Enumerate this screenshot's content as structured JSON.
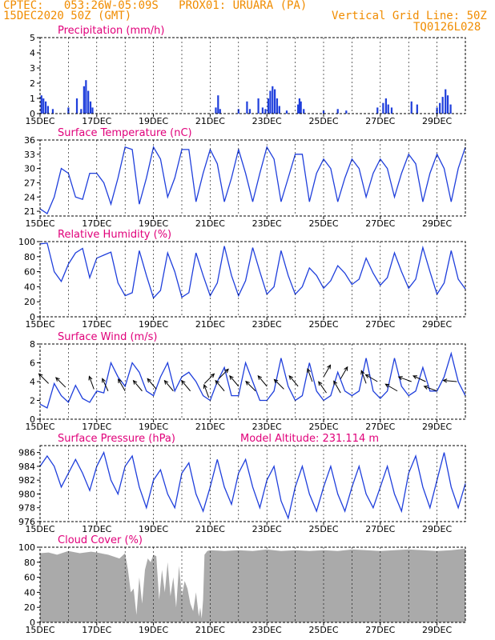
{
  "header": {
    "line1": "CPTEC:   053:26W-05:09S   PROX01: URUARA (PA)",
    "line2_left": "15DEC2020 50Z (GMT)",
    "line2_right": "Vertical Grid Line: 50Z",
    "line3_right": "TQ0126L028"
  },
  "colors": {
    "header": "#f08c00",
    "title": "#e0007a",
    "series": "#1f3fdc",
    "cloud": "#aaaaaa"
  },
  "chart_data": [
    {
      "type": "bar",
      "title": "Precipitation (mm/h)",
      "ylim": [
        0,
        5
      ],
      "yticks": [
        "0",
        "1",
        "2",
        "3",
        "4",
        "5"
      ],
      "xticks": [
        "15DEC",
        "17DEC",
        "19DEC",
        "21DEC",
        "23DEC",
        "25DEC",
        "27DEC",
        "29DEC"
      ],
      "x_start_day": 15,
      "x_end_day": 30,
      "bars": [
        [
          15.05,
          1.2
        ],
        [
          15.12,
          1.0
        ],
        [
          15.2,
          0.8
        ],
        [
          15.28,
          0.5
        ],
        [
          15.45,
          0.3
        ],
        [
          16.0,
          0.4
        ],
        [
          16.3,
          1.0
        ],
        [
          16.45,
          0.3
        ],
        [
          16.55,
          1.8
        ],
        [
          16.62,
          2.2
        ],
        [
          16.7,
          1.5
        ],
        [
          16.78,
          0.8
        ],
        [
          16.85,
          0.4
        ],
        [
          21.2,
          0.4
        ],
        [
          21.28,
          1.2
        ],
        [
          21.35,
          0.3
        ],
        [
          22.0,
          0.3
        ],
        [
          22.3,
          0.8
        ],
        [
          22.4,
          0.3
        ],
        [
          22.7,
          1.0
        ],
        [
          22.85,
          0.4
        ],
        [
          22.95,
          0.3
        ],
        [
          23.05,
          1.0
        ],
        [
          23.12,
          1.5
        ],
        [
          23.2,
          1.8
        ],
        [
          23.28,
          1.6
        ],
        [
          23.36,
          1.0
        ],
        [
          23.44,
          0.5
        ],
        [
          23.7,
          0.2
        ],
        [
          24.1,
          0.6
        ],
        [
          24.15,
          1.0
        ],
        [
          24.2,
          0.8
        ],
        [
          24.3,
          0.3
        ],
        [
          25.0,
          0.2
        ],
        [
          25.5,
          0.3
        ],
        [
          25.8,
          0.2
        ],
        [
          26.9,
          0.4
        ],
        [
          27.1,
          0.7
        ],
        [
          27.2,
          1.0
        ],
        [
          27.28,
          0.6
        ],
        [
          27.4,
          0.4
        ],
        [
          28.1,
          0.8
        ],
        [
          28.3,
          0.6
        ],
        [
          29.0,
          0.4
        ],
        [
          29.1,
          0.7
        ],
        [
          29.2,
          1.1
        ],
        [
          29.3,
          1.6
        ],
        [
          29.38,
          1.2
        ],
        [
          29.48,
          0.6
        ]
      ]
    },
    {
      "type": "line",
      "title": "Surface Temperature (nC)",
      "ylim": [
        20,
        36
      ],
      "yticks": [
        "21",
        "24",
        "27",
        "30",
        "33",
        "36"
      ],
      "xticks": [
        "15DEC",
        "17DEC",
        "19DEC",
        "21DEC",
        "23DEC",
        "25DEC",
        "27DEC",
        "29DEC"
      ],
      "x_start_day": 15,
      "x_end_day": 30,
      "x": [
        15,
        15.25,
        15.5,
        15.75,
        16,
        16.25,
        16.5,
        16.75,
        17,
        17.25,
        17.5,
        17.75,
        18,
        18.25,
        18.5,
        18.75,
        19,
        19.25,
        19.5,
        19.75,
        20,
        20.25,
        20.5,
        20.75,
        21,
        21.25,
        21.5,
        21.75,
        22,
        22.25,
        22.5,
        22.75,
        23,
        23.25,
        23.5,
        23.75,
        24,
        24.25,
        24.5,
        24.75,
        25,
        25.25,
        25.5,
        25.75,
        26,
        26.25,
        26.5,
        26.75,
        27,
        27.25,
        27.5,
        27.75,
        28,
        28.25,
        28.5,
        28.75,
        29,
        29.25,
        29.5,
        29.75,
        30
      ],
      "y": [
        21.5,
        20.5,
        24,
        30,
        29,
        24,
        23.5,
        29,
        29,
        27,
        22.5,
        28,
        34.5,
        34,
        22.5,
        28,
        34.5,
        32,
        24,
        28,
        34,
        34,
        23,
        29,
        34,
        31,
        23,
        28,
        34,
        29,
        23,
        29,
        34.5,
        32,
        23,
        28,
        33,
        33,
        23,
        29,
        32,
        30,
        23,
        28,
        32,
        30,
        24,
        29,
        32,
        30,
        24,
        29,
        33,
        31,
        23,
        29,
        33,
        30,
        23,
        30,
        34.5
      ]
    },
    {
      "type": "line",
      "title": "Relative Humidity (%)",
      "ylim": [
        0,
        100
      ],
      "yticks": [
        "0",
        "20",
        "40",
        "60",
        "80",
        "100"
      ],
      "xticks": [
        "15DEC",
        "17DEC",
        "19DEC",
        "21DEC",
        "23DEC",
        "25DEC",
        "27DEC",
        "29DEC"
      ],
      "x_start_day": 15,
      "x_end_day": 30,
      "x": [
        15,
        15.25,
        15.5,
        15.75,
        16,
        16.25,
        16.5,
        16.75,
        17,
        17.25,
        17.5,
        17.75,
        18,
        18.25,
        18.5,
        18.75,
        19,
        19.25,
        19.5,
        19.75,
        20,
        20.25,
        20.5,
        20.75,
        21,
        21.25,
        21.5,
        21.75,
        22,
        22.25,
        22.5,
        22.75,
        23,
        23.25,
        23.5,
        23.75,
        24,
        24.25,
        24.5,
        24.75,
        25,
        25.25,
        25.5,
        25.75,
        26,
        26.25,
        26.5,
        26.75,
        27,
        27.25,
        27.5,
        27.75,
        28,
        28.25,
        28.5,
        28.75,
        29,
        29.25,
        29.5,
        29.75,
        30
      ],
      "y": [
        97,
        98,
        60,
        47,
        70,
        85,
        91,
        52,
        78,
        82,
        86,
        45,
        28,
        32,
        88,
        55,
        25,
        35,
        85,
        60,
        26,
        32,
        85,
        55,
        28,
        45,
        94,
        55,
        28,
        48,
        92,
        60,
        30,
        40,
        88,
        55,
        30,
        40,
        65,
        55,
        38,
        48,
        68,
        58,
        43,
        50,
        78,
        58,
        42,
        52,
        85,
        60,
        38,
        50,
        92,
        60,
        30,
        45,
        88,
        50,
        37
      ]
    },
    {
      "type": "line",
      "title": "Surface Wind (m/s)",
      "ylim": [
        0,
        8
      ],
      "yticks": [
        "0",
        "2",
        "4",
        "6",
        "8"
      ],
      "xticks": [
        "15DEC",
        "17DEC",
        "19DEC",
        "21DEC",
        "23DEC",
        "25DEC",
        "27DEC",
        "29DEC"
      ],
      "x_start_day": 15,
      "x_end_day": 30,
      "x": [
        15,
        15.25,
        15.5,
        15.75,
        16,
        16.25,
        16.5,
        16.75,
        17,
        17.25,
        17.5,
        17.75,
        18,
        18.25,
        18.5,
        18.75,
        19,
        19.25,
        19.5,
        19.75,
        20,
        20.25,
        20.5,
        20.75,
        21,
        21.25,
        21.5,
        21.75,
        22,
        22.25,
        22.5,
        22.75,
        23,
        23.25,
        23.5,
        23.75,
        24,
        24.25,
        24.5,
        24.75,
        25,
        25.25,
        25.5,
        25.75,
        26,
        26.25,
        26.5,
        26.75,
        27,
        27.25,
        27.5,
        27.75,
        28,
        28.25,
        28.5,
        28.75,
        29,
        29.25,
        29.5,
        29.75,
        30
      ],
      "y": [
        1.6,
        1.2,
        3.8,
        2.5,
        1.8,
        3.6,
        2.2,
        1.8,
        3.0,
        2.8,
        6.0,
        4.5,
        3.5,
        6.0,
        5.0,
        3.0,
        2.5,
        4.5,
        6.0,
        3.0,
        4.5,
        5.0,
        4.0,
        2.5,
        2.0,
        4.0,
        5.5,
        2.5,
        2.5,
        6.0,
        4.0,
        2.0,
        2.0,
        3.0,
        6.5,
        3.5,
        2.0,
        2.5,
        6.0,
        3.0,
        2.0,
        2.5,
        5.0,
        3.0,
        2.5,
        3.0,
        6.5,
        3.0,
        2.2,
        3.0,
        6.5,
        3.5,
        2.5,
        3.0,
        5.5,
        3.0,
        3.0,
        4.5,
        7.0,
        4.0,
        2.5
      ],
      "arrows": [
        [
          15.3,
          3.8,
          135
        ],
        [
          15.9,
          3.4,
          135
        ],
        [
          16.9,
          3.2,
          110
        ],
        [
          17.4,
          3.0,
          115
        ],
        [
          18.0,
          3.0,
          120
        ],
        [
          18.6,
          3.0,
          130
        ],
        [
          19.1,
          3.2,
          130
        ],
        [
          19.7,
          3.0,
          130
        ],
        [
          20.3,
          3.0,
          130
        ],
        [
          20.8,
          3.8,
          45
        ],
        [
          20.95,
          2.3,
          110
        ],
        [
          21.3,
          4.3,
          45
        ],
        [
          21.5,
          3.0,
          130
        ],
        [
          22.0,
          3.5,
          130
        ],
        [
          22.6,
          3.0,
          135
        ],
        [
          23.0,
          3.5,
          130
        ],
        [
          23.6,
          3.2,
          135
        ],
        [
          24.1,
          3.5,
          130
        ],
        [
          24.6,
          4.0,
          110
        ],
        [
          25.0,
          4.5,
          60
        ],
        [
          25.1,
          2.8,
          125
        ],
        [
          25.6,
          4.3,
          60
        ],
        [
          25.6,
          2.8,
          120
        ],
        [
          26.5,
          3.8,
          110
        ],
        [
          26.9,
          4.0,
          150
        ],
        [
          27.6,
          3.0,
          150
        ],
        [
          28.1,
          4.0,
          160
        ],
        [
          28.6,
          4.0,
          155
        ],
        [
          29.0,
          3.0,
          160
        ],
        [
          29.7,
          4.0,
          175
        ]
      ]
    },
    {
      "type": "line",
      "title": "Surface Pressure (hPa)",
      "annotation": "Model Altitude: 231.114 m",
      "ylim": [
        976,
        987
      ],
      "yticks": [
        "976",
        "978",
        "980",
        "982",
        "984",
        "986"
      ],
      "xticks": [
        "15DEC",
        "17DEC",
        "19DEC",
        "21DEC",
        "23DEC",
        "25DEC",
        "27DEC",
        "29DEC"
      ],
      "x_start_day": 15,
      "x_end_day": 30,
      "x": [
        15,
        15.25,
        15.5,
        15.75,
        16,
        16.25,
        16.5,
        16.75,
        17,
        17.25,
        17.5,
        17.75,
        18,
        18.25,
        18.5,
        18.75,
        19,
        19.25,
        19.5,
        19.75,
        20,
        20.25,
        20.5,
        20.75,
        21,
        21.25,
        21.5,
        21.75,
        22,
        22.25,
        22.5,
        22.75,
        23,
        23.25,
        23.5,
        23.75,
        24,
        24.25,
        24.5,
        24.75,
        25,
        25.25,
        25.5,
        25.75,
        26,
        26.25,
        26.5,
        26.75,
        27,
        27.25,
        27.5,
        27.75,
        28,
        28.25,
        28.5,
        28.75,
        29,
        29.25,
        29.5,
        29.75,
        30
      ],
      "y": [
        984,
        985.5,
        984,
        981,
        983,
        985,
        983,
        980.5,
        984,
        986,
        982,
        980,
        984,
        985.5,
        981,
        978,
        982,
        983.5,
        980,
        978,
        983,
        984.5,
        980,
        977.5,
        981,
        985,
        981,
        978.5,
        983,
        985,
        981,
        978,
        982,
        984,
        979,
        976.5,
        981,
        984,
        980,
        977.5,
        981,
        984,
        980,
        977.5,
        981,
        984,
        980,
        978,
        981,
        984,
        980,
        977.5,
        983,
        985.5,
        981,
        978,
        982,
        986,
        981,
        978,
        981.5
      ]
    },
    {
      "type": "area",
      "title": "Cloud Cover (%)",
      "ylim": [
        0,
        100
      ],
      "yticks": [
        "0",
        "20",
        "40",
        "60",
        "80",
        "100"
      ],
      "xticks": [
        "15DEC",
        "17DEC",
        "19DEC",
        "21DEC",
        "23DEC",
        "25DEC",
        "27DEC",
        "29DEC"
      ],
      "x_start_day": 15,
      "x_end_day": 30,
      "x": [
        15,
        15.3,
        15.6,
        16,
        16.4,
        16.8,
        17,
        17.4,
        17.8,
        18,
        18.1,
        18.2,
        18.3,
        18.4,
        18.5,
        18.6,
        18.7,
        18.8,
        18.9,
        19,
        19.1,
        19.2,
        19.3,
        19.4,
        19.5,
        19.6,
        19.7,
        19.8,
        19.9,
        20,
        20.1,
        20.2,
        20.3,
        20.4,
        20.5,
        20.6,
        20.65,
        20.7,
        20.75,
        20.8,
        20.9,
        21,
        21.5,
        22,
        22.5,
        23,
        23.5,
        24,
        24.5,
        25,
        25.5,
        26,
        26.5,
        27,
        27.5,
        28,
        28.5,
        29,
        29.5,
        30
      ],
      "y": [
        92,
        93,
        90,
        95,
        92,
        94,
        93,
        90,
        85,
        92,
        70,
        40,
        45,
        10,
        60,
        25,
        70,
        85,
        80,
        90,
        88,
        30,
        70,
        40,
        80,
        35,
        60,
        20,
        75,
        35,
        55,
        45,
        25,
        15,
        40,
        8,
        20,
        5,
        30,
        90,
        95,
        96,
        95,
        96,
        95,
        97,
        95,
        96,
        95,
        96,
        95,
        97,
        96,
        95,
        96,
        97,
        96,
        95,
        96,
        98
      ]
    }
  ]
}
